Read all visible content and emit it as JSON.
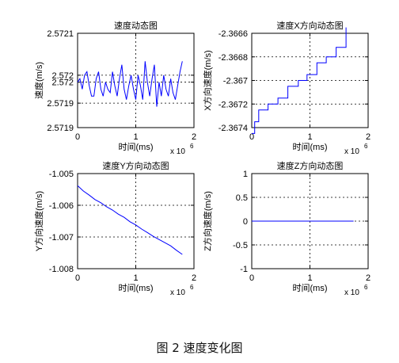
{
  "figure_caption": "图 2  速度变化图",
  "chart_data": [
    {
      "type": "line",
      "title": "速度动态图",
      "xlabel": "时间(ms)",
      "ylabel": "速度(m/s)",
      "x_multiplier": "x 10",
      "x_multiplier_exp": "6",
      "xlim": [
        0,
        2
      ],
      "ylim": [
        2.57185,
        2.57212
      ],
      "xticks": [
        0,
        1,
        2
      ],
      "xtick_labels": [
        "0",
        "1",
        "2"
      ],
      "yticks": [
        2.57212,
        2.572,
        2.57198,
        2.57192,
        2.57185
      ],
      "ytick_labels": [
        "2.5721",
        "2.572",
        "2.572",
        "2.5719",
        "2.5719"
      ],
      "grid": true,
      "color": "#0000ff",
      "x": [
        0.0,
        0.04,
        0.08,
        0.12,
        0.16,
        0.2,
        0.24,
        0.28,
        0.32,
        0.36,
        0.4,
        0.44,
        0.48,
        0.52,
        0.56,
        0.6,
        0.64,
        0.68,
        0.72,
        0.76,
        0.8,
        0.84,
        0.88,
        0.92,
        0.96,
        1.0,
        1.04,
        1.08,
        1.12,
        1.16,
        1.2,
        1.24,
        1.28,
        1.32,
        1.36,
        1.4,
        1.44,
        1.48,
        1.52,
        1.56,
        1.6,
        1.64,
        1.68,
        1.72,
        1.76,
        1.8
      ],
      "y": [
        2.57198,
        2.57199,
        2.57196,
        2.572,
        2.57201,
        2.57197,
        2.57194,
        2.57194,
        2.57199,
        2.57201,
        2.57196,
        2.57194,
        2.57198,
        2.57196,
        2.57195,
        2.57201,
        2.57197,
        2.57194,
        2.57199,
        2.57203,
        2.57196,
        2.57193,
        2.57197,
        2.572,
        2.57196,
        2.57193,
        2.572,
        2.57197,
        2.57193,
        2.57204,
        2.57198,
        2.57194,
        2.57199,
        2.57203,
        2.57191,
        2.57198,
        2.57194,
        2.572,
        2.57196,
        2.57194,
        2.57199,
        2.57195,
        2.57193,
        2.57197,
        2.57201,
        2.57204
      ]
    },
    {
      "type": "line",
      "title": "速度X方向动态图",
      "xlabel": "时间(ms)",
      "ylabel": "X方向速度(m/s)",
      "x_multiplier": "x 10",
      "x_multiplier_exp": "6",
      "xlim": [
        0,
        2
      ],
      "ylim": [
        -2.3674,
        -2.3666
      ],
      "xticks": [
        0,
        1,
        2
      ],
      "xtick_labels": [
        "0",
        "1",
        "2"
      ],
      "yticks": [
        -2.3666,
        -2.3668,
        -2.367,
        -2.3672,
        -2.3674
      ],
      "ytick_labels": [
        "-2.3666",
        "-2.3668",
        "-2.367",
        "-2.3672",
        "-2.3674"
      ],
      "grid": true,
      "color": "#0000ff",
      "x": [
        0.0,
        0.05,
        0.05,
        0.12,
        0.12,
        0.28,
        0.28,
        0.45,
        0.45,
        0.62,
        0.62,
        0.8,
        0.8,
        0.95,
        0.95,
        1.12,
        1.12,
        1.28,
        1.28,
        1.45,
        1.45,
        1.62,
        1.62
      ],
      "y": [
        -2.36745,
        -2.36745,
        -2.36735,
        -2.36735,
        -2.36725,
        -2.36725,
        -2.3672,
        -2.3672,
        -2.36715,
        -2.36715,
        -2.36705,
        -2.36705,
        -2.367,
        -2.367,
        -2.36695,
        -2.36695,
        -2.36685,
        -2.36685,
        -2.3668,
        -2.3668,
        -2.36672,
        -2.36672,
        -2.36655
      ]
    },
    {
      "type": "line",
      "title": "速度Y方向动态图",
      "xlabel": "时间(ms)",
      "ylabel": "Y方向速度(m/s)",
      "x_multiplier": "x 10",
      "x_multiplier_exp": "6",
      "xlim": [
        0,
        2
      ],
      "ylim": [
        -1.008,
        -1.005
      ],
      "xticks": [
        0,
        1,
        2
      ],
      "xtick_labels": [
        "0",
        "1",
        "2"
      ],
      "yticks": [
        -1.005,
        -1.006,
        -1.007,
        -1.008
      ],
      "ytick_labels": [
        "-1.005",
        "-1.006",
        "-1.007",
        "-1.008"
      ],
      "grid": true,
      "color": "#0000ff",
      "x": [
        0.0,
        0.1,
        0.2,
        0.3,
        0.4,
        0.5,
        0.6,
        0.7,
        0.8,
        0.9,
        1.0,
        1.1,
        1.2,
        1.3,
        1.4,
        1.5,
        1.6,
        1.7,
        1.8
      ],
      "y": [
        -1.00538,
        -1.00555,
        -1.00568,
        -1.00582,
        -1.00592,
        -1.00605,
        -1.00615,
        -1.00628,
        -1.00638,
        -1.00652,
        -1.00662,
        -1.00675,
        -1.00686,
        -1.00698,
        -1.00708,
        -1.00718,
        -1.00728,
        -1.00742,
        -1.00755
      ]
    },
    {
      "type": "line",
      "title": "速度Z方向动态图",
      "xlabel": "时间(ms)",
      "ylabel": "Z方向速度(m/s)",
      "x_multiplier": "x 10",
      "x_multiplier_exp": "6",
      "xlim": [
        0,
        2
      ],
      "ylim": [
        -1,
        1
      ],
      "xticks": [
        0,
        1,
        2
      ],
      "xtick_labels": [
        "0",
        "1",
        "2"
      ],
      "yticks": [
        -1,
        -0.5,
        0,
        0.5,
        1
      ],
      "ytick_labels": [
        "-1",
        "-0.5",
        "0",
        "0.5",
        "1"
      ],
      "grid": true,
      "color": "#0000ff",
      "x": [
        0.0,
        1.75
      ],
      "y": [
        0,
        0
      ]
    }
  ]
}
